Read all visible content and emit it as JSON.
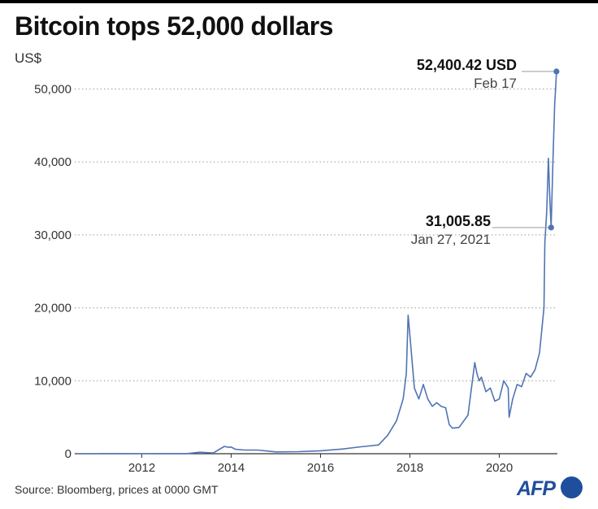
{
  "header": {
    "title": "Bitcoin tops 52,000 dollars",
    "unit": "US$"
  },
  "footer": {
    "source": "Source: Bloomberg, prices at 0000 GMT",
    "logo_text": "AFP"
  },
  "colors": {
    "line": "#4f74b3",
    "grid": "#9a9a9a",
    "axis": "#333333",
    "logo": "#1f4f9c"
  },
  "chart_data": {
    "type": "line",
    "title": "Bitcoin tops 52,000 dollars",
    "ylabel": "US$",
    "xlabel": "",
    "ylim": [
      0,
      52500
    ],
    "xlim": [
      2010.5,
      2021.3
    ],
    "yticks": [
      0,
      10000,
      20000,
      30000,
      40000,
      50000
    ],
    "ytick_labels": [
      "0",
      "10,000",
      "20,000",
      "30,000",
      "40,000",
      "50,000"
    ],
    "xticks": [
      2012,
      2014,
      2016,
      2018,
      2020
    ],
    "xtick_labels": [
      "2012",
      "2014",
      "2016",
      "2018",
      "2020"
    ],
    "grid": "horizontal dotted",
    "series": [
      {
        "x": [
          2010.55,
          2011.0,
          2011.5,
          2012.0,
          2012.5,
          2013.0,
          2013.3,
          2013.6,
          2013.85,
          2013.92,
          2014.0,
          2014.1,
          2014.3,
          2014.6,
          2015.0,
          2015.5,
          2016.0,
          2016.5,
          2016.9,
          2017.0,
          2017.3,
          2017.5,
          2017.7,
          2017.85,
          2017.92,
          2017.96,
          2018.03,
          2018.1,
          2018.2,
          2018.3,
          2018.4,
          2018.5,
          2018.6,
          2018.7,
          2018.8,
          2018.88,
          2018.95,
          2019.1,
          2019.3,
          2019.45,
          2019.5,
          2019.55,
          2019.6,
          2019.7,
          2019.8,
          2019.9,
          2020.0,
          2020.1,
          2020.2,
          2020.22,
          2020.3,
          2020.4,
          2020.5,
          2020.6,
          2020.7,
          2020.8,
          2020.9,
          2021.0,
          2021.02,
          2021.06,
          2021.1,
          2021.13,
          2021.16,
          2021.2,
          2021.24,
          2021.26,
          2021.28
        ],
        "values": [
          0,
          1,
          10,
          5,
          7,
          15,
          200,
          100,
          1000,
          900,
          900,
          600,
          500,
          500,
          250,
          280,
          400,
          650,
          950,
          1000,
          1200,
          2500,
          4500,
          7500,
          11000,
          19000,
          14000,
          9000,
          7500,
          9500,
          7500,
          6500,
          7000,
          6500,
          6300,
          4000,
          3500,
          3600,
          5300,
          12500,
          11000,
          10000,
          10500,
          8500,
          9000,
          7200,
          7500,
          10000,
          9000,
          5000,
          7500,
          9500,
          9200,
          11000,
          10500,
          11500,
          13800,
          20000,
          29000,
          33000,
          40500,
          35000,
          31005.85,
          40000,
          48000,
          50000,
          52400.42
        ]
      }
    ],
    "annotations": [
      {
        "label": "52,400.42 USD",
        "date": "Feb 17",
        "x": 2021.28,
        "y": 52400.42
      },
      {
        "label": "31,005.85",
        "date": "Jan 27, 2021",
        "x": 2021.16,
        "y": 31005.85
      }
    ]
  }
}
